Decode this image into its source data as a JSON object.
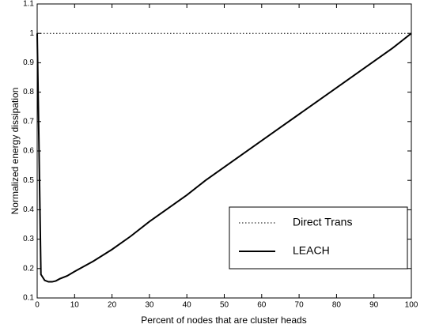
{
  "chart_data": {
    "type": "line",
    "xlabel": "Percent of nodes that are cluster heads",
    "ylabel": "Normalized energy dissipation",
    "x": [
      0,
      0.5,
      1,
      2,
      3,
      4,
      5,
      6,
      8,
      10,
      15,
      20,
      25,
      30,
      35,
      40,
      45,
      50,
      55,
      60,
      65,
      70,
      75,
      80,
      85,
      90,
      95,
      100
    ],
    "series": [
      {
        "name": "Direct Trans",
        "color": "#000000",
        "style": "dotted",
        "values": [
          1,
          1,
          1,
          1,
          1,
          1,
          1,
          1,
          1,
          1,
          1,
          1,
          1,
          1,
          1,
          1,
          1,
          1,
          1,
          1,
          1,
          1,
          1,
          1,
          1,
          1,
          1,
          1
        ]
      },
      {
        "name": "LEACH",
        "color": "#000000",
        "style": "solid",
        "values": [
          1.0,
          0.6,
          0.18,
          0.16,
          0.155,
          0.155,
          0.158,
          0.165,
          0.175,
          0.19,
          0.225,
          0.265,
          0.31,
          0.36,
          0.405,
          0.45,
          0.5,
          0.545,
          0.59,
          0.635,
          0.68,
          0.725,
          0.77,
          0.815,
          0.86,
          0.905,
          0.95,
          1.0
        ]
      }
    ],
    "xlim": [
      0,
      100
    ],
    "xticks": [
      0,
      10,
      20,
      30,
      40,
      50,
      60,
      70,
      80,
      90,
      100
    ],
    "ylim": [
      0.1,
      1.1
    ],
    "yticks": [
      0.1,
      0.2,
      0.3,
      0.4,
      0.5,
      0.6,
      0.7,
      0.8,
      0.9,
      1,
      1.1
    ],
    "grid": false,
    "legend": "lower right"
  }
}
